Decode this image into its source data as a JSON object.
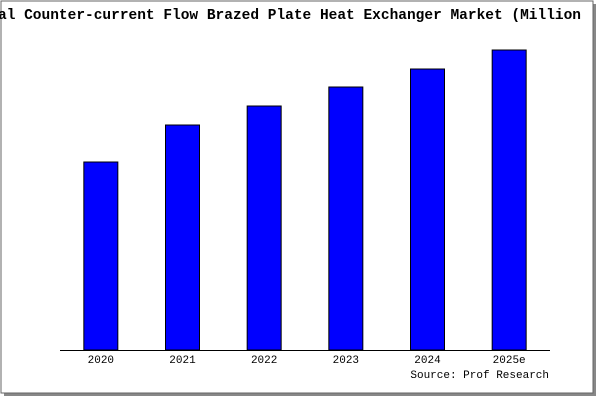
{
  "chart_data": {
    "type": "bar",
    "title": "al Counter-current Flow Brazed Plate Heat Exchanger Market (Million",
    "source": "Source: Prof Research",
    "categories": [
      "2020",
      "2021",
      "2022",
      "2023",
      "2024",
      "2025e"
    ],
    "values": [
      188,
      225,
      244,
      263,
      281,
      300
    ],
    "color": "#0000ff",
    "ylim": [
      0,
      300
    ]
  }
}
